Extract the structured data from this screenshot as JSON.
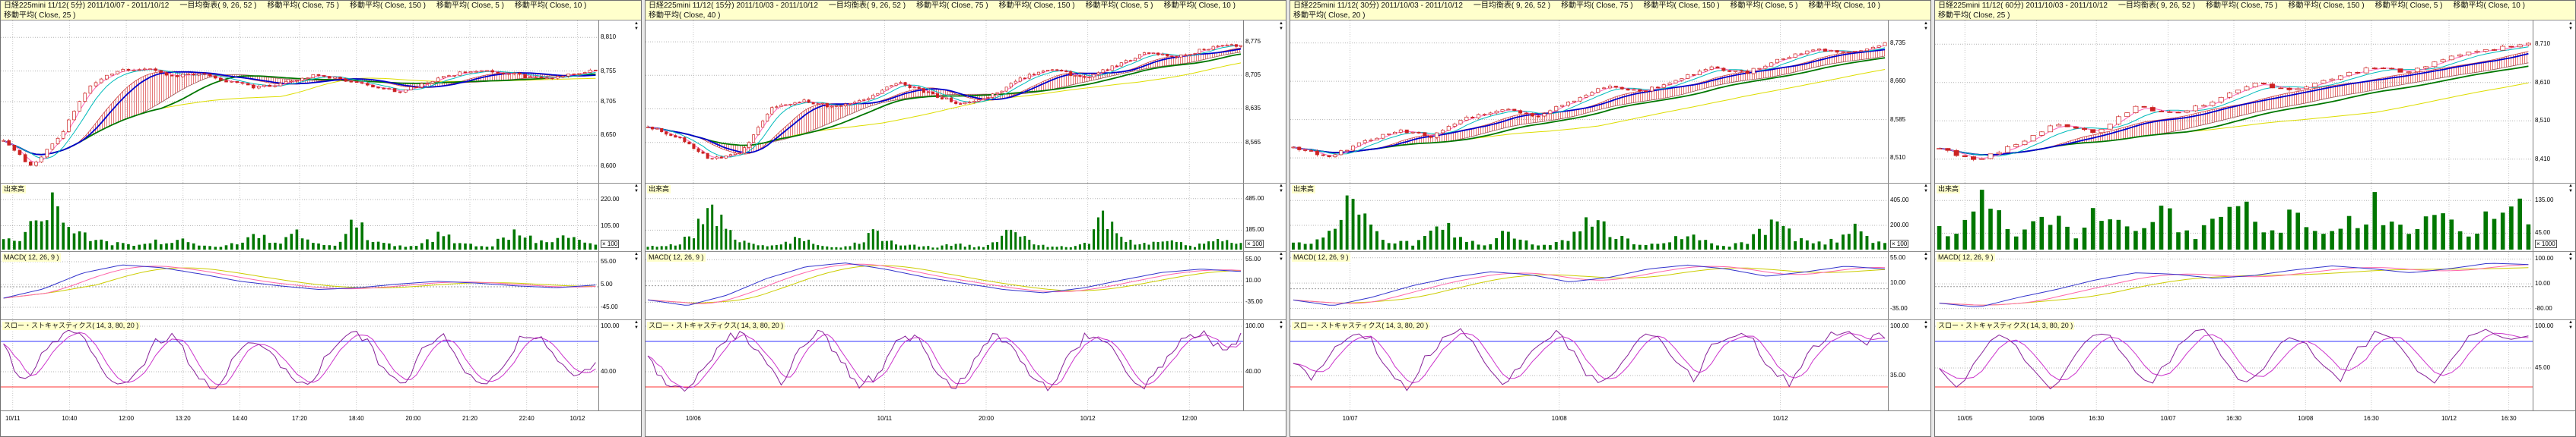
{
  "app": {
    "name": "マルチチャート",
    "accent_colors": {
      "header_bg": "#ffffcc",
      "grid": "#b4b4b4",
      "candle": "#cc2222",
      "candle_up_fill": "#ffffff",
      "volume": "#007700",
      "cloud": "#dd5555",
      "ma_fast": "#ff66bb",
      "ma_mid": "#00bbbb",
      "ma_slow": "#0000cc",
      "ma_slower": "#007700",
      "ma_slowest": "#dddd00",
      "macd_line": "#3333cc",
      "macd_signal": "#ff66aa",
      "macd_osc": "#cccc00",
      "stoch_k": "#882299",
      "stoch_d": "#cc33cc",
      "stoch_upper_line": "#3333ff",
      "stoch_lower_line": "#ff3333"
    }
  },
  "chart_data": [
    {
      "type": "candlestick",
      "title": "日経225mini 11/12( 5分)  2011/10/07 - 2011/10/12",
      "legend": [
        "一目均衡表( 9, 26, 52 )",
        "移動平均( Close, 75 )",
        "移動平均( Close, 150 )",
        "移動平均( Close, 5 )",
        "移動平均( Close, 10 )",
        "移動平均( Close, 25 )"
      ],
      "price": {
        "min": 8580,
        "max": 8830,
        "candles": 110,
        "ticks": [
          {
            "label": "8,810",
            "v": 8810
          },
          {
            "label": "8,755",
            "v": 8755
          },
          {
            "label": "8,705",
            "v": 8705
          },
          {
            "label": "8,650",
            "v": 8650
          },
          {
            "label": "8,600",
            "v": 8600
          }
        ],
        "close": [
          8640,
          8600,
          8648,
          8730,
          8755,
          8760,
          8745,
          8752,
          8738,
          8728,
          8736,
          8748,
          8742,
          8730,
          8722,
          8736,
          8750,
          8758,
          8750,
          8742,
          8748,
          8756
        ]
      },
      "volume": {
        "label": "出来高",
        "unit": "× 100",
        "max": 240,
        "ticks": [
          {
            "label": "220.00",
            "v": 220
          },
          {
            "label": "105.00",
            "v": 105
          }
        ],
        "values": [
          55,
          30,
          120,
          210,
          160,
          80,
          45,
          30,
          22,
          18,
          35,
          25,
          40,
          15,
          10,
          28,
          45,
          60,
          25,
          85,
          35,
          20,
          15,
          140,
          60,
          25,
          18,
          12,
          40,
          70,
          30,
          18,
          12,
          55,
          90,
          45,
          28,
          65,
          35,
          20
        ]
      },
      "macd": {
        "label": "MACD( 12, 26, 9 )",
        "min": -60,
        "max": 70,
        "ticks": [
          {
            "label": "55.00",
            "v": 55
          },
          {
            "label": "5.00",
            "v": 5
          },
          {
            "label": "-45.00",
            "v": -45
          }
        ],
        "keypoints": [
          -25,
          -5,
          30,
          48,
          42,
          28,
          12,
          2,
          -6,
          -2,
          6,
          12,
          8,
          2,
          -2,
          4
        ]
      },
      "stoch": {
        "label": "スロー・ストキャスティクス( 14, 3, 80, 20 )",
        "upper": 80,
        "lower": 20,
        "ticks": [
          {
            "label": "100.00",
            "v": 100
          },
          {
            "label": "40.00",
            "v": 40
          }
        ],
        "keypoints": [
          75,
          25,
          60,
          88,
          92,
          45,
          18,
          35,
          80,
          90,
          40,
          15,
          55,
          85,
          70,
          30,
          20,
          65,
          90,
          85,
          35,
          22,
          70,
          88,
          45,
          18,
          40,
          82,
          90,
          50,
          28,
          55
        ]
      },
      "times": [
        {
          "label": "10/11",
          "x": 0.02
        },
        {
          "label": "10:40",
          "x": 0.115
        },
        {
          "label": "12:00",
          "x": 0.21
        },
        {
          "label": "13:20",
          "x": 0.305
        },
        {
          "label": "14:40",
          "x": 0.4
        },
        {
          "label": "17:20",
          "x": 0.5
        },
        {
          "label": "18:40",
          "x": 0.595
        },
        {
          "label": "20:00",
          "x": 0.69
        },
        {
          "label": "21:20",
          "x": 0.785
        },
        {
          "label": "22:40",
          "x": 0.88
        },
        {
          "label": "10/12",
          "x": 0.965
        }
      ]
    },
    {
      "type": "candlestick",
      "title": "日経225mini 11/12( 15分)  2011/10/03 - 2011/10/12",
      "legend": [
        "一目均衡表( 9, 26, 52 )",
        "移動平均( Close, 75 )",
        "移動平均( Close, 150 )",
        "移動平均( Close, 5 )",
        "移動平均( Close, 10 )",
        "移動平均( Close, 40 )"
      ],
      "price": {
        "min": 8490,
        "max": 8810,
        "candles": 130,
        "ticks": [
          {
            "label": "8,775",
            "v": 8775
          },
          {
            "label": "8,705",
            "v": 8705
          },
          {
            "label": "8,635",
            "v": 8635
          },
          {
            "label": "8,565",
            "v": 8565
          }
        ],
        "close": [
          8598,
          8575,
          8528,
          8545,
          8640,
          8652,
          8638,
          8655,
          8690,
          8668,
          8645,
          8662,
          8700,
          8718,
          8698,
          8725,
          8752,
          8745,
          8762,
          8768
        ]
      },
      "volume": {
        "label": "出来高",
        "unit": "× 100",
        "max": 520,
        "ticks": [
          {
            "label": "485.00",
            "v": 485
          },
          {
            "label": "185.00",
            "v": 185
          }
        ],
        "values": [
          40,
          25,
          60,
          150,
          480,
          220,
          90,
          50,
          35,
          60,
          120,
          45,
          30,
          25,
          80,
          160,
          70,
          40,
          30,
          25,
          55,
          35,
          28,
          90,
          180,
          75,
          40,
          30,
          22,
          60,
          340,
          120,
          65,
          45,
          90,
          55,
          35,
          70,
          120,
          60
        ]
      },
      "macd": {
        "label": "MACD( 12, 26, 9 )",
        "min": -60,
        "max": 65,
        "ticks": [
          {
            "label": "55.00",
            "v": 55
          },
          {
            "label": "10.00",
            "v": 10
          },
          {
            "label": "-35.00",
            "v": -35
          }
        ],
        "keypoints": [
          -30,
          -42,
          -20,
          15,
          40,
          48,
          35,
          18,
          5,
          -8,
          -15,
          -5,
          12,
          28,
          35,
          30
        ]
      },
      "stoch": {
        "label": "スロー・ストキャスティクス( 14, 3, 80, 20 )",
        "upper": 80,
        "lower": 20,
        "ticks": [
          {
            "label": "100.00",
            "v": 100
          },
          {
            "label": "40.00",
            "v": 40
          }
        ],
        "keypoints": [
          60,
          20,
          15,
          45,
          85,
          90,
          55,
          25,
          70,
          92,
          60,
          22,
          35,
          80,
          88,
          40,
          15,
          50,
          86,
          78,
          30,
          18,
          62,
          90,
          82,
          38,
          20,
          55,
          88,
          92,
          70,
          85
        ]
      },
      "times": [
        {
          "label": "10/06",
          "x": 0.08
        },
        {
          "label": "10/11",
          "x": 0.4
        },
        {
          "label": "20:00",
          "x": 0.57
        },
        {
          "label": "10/12",
          "x": 0.74
        },
        {
          "label": "12:00",
          "x": 0.91
        }
      ]
    },
    {
      "type": "candlestick",
      "title": "日経225mini 11/12( 30分)  2011/10/03 - 2011/10/12",
      "legend": [
        "一目均衡表( 9, 26, 52 )",
        "移動平均( Close, 75 )",
        "移動平均( Close, 150 )",
        "移動平均( Close, 5 )",
        "移動平均( Close, 10 )",
        "移動平均( Close, 20 )"
      ],
      "price": {
        "min": 8470,
        "max": 8770,
        "candles": 100,
        "ticks": [
          {
            "label": "8,735",
            "v": 8735
          },
          {
            "label": "8,660",
            "v": 8660
          },
          {
            "label": "8,585",
            "v": 8585
          },
          {
            "label": "8,510",
            "v": 8510
          }
        ],
        "close": [
          8532,
          8512,
          8540,
          8565,
          8552,
          8588,
          8605,
          8592,
          8622,
          8652,
          8640,
          8662,
          8688,
          8676,
          8705,
          8722,
          8715,
          8735
        ]
      },
      "volume": {
        "label": "出来高",
        "unit": "× 100",
        "max": 450,
        "ticks": [
          {
            "label": "405.00",
            "v": 405
          },
          {
            "label": "200.00",
            "v": 200
          }
        ],
        "values": [
          80,
          45,
          120,
          260,
          400,
          180,
          90,
          60,
          45,
          110,
          220,
          95,
          55,
          40,
          140,
          70,
          45,
          35,
          90,
          180,
          310,
          130,
          70,
          50,
          40,
          85,
          160,
          75,
          45,
          35,
          70,
          150,
          240,
          110,
          60,
          45,
          95,
          170,
          85,
          55
        ]
      },
      "macd": {
        "label": "MACD( 12, 26, 9 )",
        "min": -45,
        "max": 60,
        "ticks": [
          {
            "label": "55.00",
            "v": 55
          },
          {
            "label": "10.00",
            "v": 10
          },
          {
            "label": "-35.00",
            "v": -35
          }
        ],
        "keypoints": [
          -20,
          -30,
          -15,
          5,
          20,
          30,
          25,
          12,
          20,
          35,
          42,
          35,
          22,
          30,
          40,
          35
        ]
      },
      "stoch": {
        "label": "スロー・ストキャスティクス( 14, 3, 80, 20 )",
        "upper": 80,
        "lower": 20,
        "ticks": [
          {
            "label": "100.00",
            "v": 100
          },
          {
            "label": "35.00",
            "v": 35
          }
        ],
        "keypoints": [
          55,
          25,
          70,
          90,
          85,
          40,
          20,
          60,
          88,
          92,
          55,
          25,
          45,
          85,
          90,
          50,
          20,
          40,
          82,
          90,
          60,
          30,
          75,
          92,
          85,
          45,
          25,
          65,
          90,
          95,
          80,
          88
        ]
      },
      "times": [
        {
          "label": "10/07",
          "x": 0.1
        },
        {
          "label": "10/08",
          "x": 0.45
        },
        {
          "label": "10/12",
          "x": 0.82
        }
      ]
    },
    {
      "type": "candlestick",
      "title": "日経225mini 11/12( 60分)  2011/10/03 - 2011/10/12",
      "legend": [
        "一目均衡表( 9, 26, 52 )",
        "移動平均( Close, 75 )",
        "移動平均( Close, 150 )",
        "移動平均( Close, 5 )",
        "移動平均( Close, 10 )",
        "移動平均( Close, 25 )"
      ],
      "price": {
        "min": 8360,
        "max": 8760,
        "candles": 70,
        "ticks": [
          {
            "label": "8,710",
            "v": 8710
          },
          {
            "label": "8,610",
            "v": 8610
          },
          {
            "label": "8,510",
            "v": 8510
          },
          {
            "label": "8,410",
            "v": 8410
          }
        ],
        "close": [
          8435,
          8408,
          8452,
          8502,
          8478,
          8548,
          8528,
          8562,
          8608,
          8588,
          8622,
          8648,
          8638,
          8678,
          8695,
          8712
        ]
      },
      "volume": {
        "label": "出来高",
        "unit": "× 1000",
        "max": 150,
        "ticks": [
          {
            "label": "135.00",
            "v": 135
          },
          {
            "label": "45.00",
            "v": 45
          }
        ],
        "values": [
          60,
          35,
          90,
          130,
          80,
          50,
          95,
          120,
          70,
          45,
          85,
          110,
          60,
          40,
          75,
          100,
          55,
          38,
          70,
          95,
          120,
          65,
          42,
          80,
          105,
          58,
          40,
          72,
          98,
          125,
          68,
          45,
          82,
          108,
          62,
          44,
          78,
          102,
          115,
          90
        ]
      },
      "macd": {
        "label": "MACD( 12, 26, 9 )",
        "min": -100,
        "max": 115,
        "ticks": [
          {
            "label": "100.00",
            "v": 100
          },
          {
            "label": "10.00",
            "v": 10
          },
          {
            "label": "-80.00",
            "v": -80
          }
        ],
        "keypoints": [
          -60,
          -75,
          -40,
          -10,
          25,
          50,
          45,
          30,
          40,
          60,
          75,
          65,
          50,
          65,
          85,
          80
        ]
      },
      "stoch": {
        "label": "スロー・ストキャスティクス( 14, 3, 80, 20 )",
        "upper": 80,
        "lower": 20,
        "ticks": [
          {
            "label": "100.00",
            "v": 100
          },
          {
            "label": "45.00",
            "v": 45
          }
        ],
        "keypoints": [
          50,
          20,
          60,
          88,
          80,
          35,
          18,
          55,
          85,
          90,
          48,
          22,
          50,
          86,
          92,
          55,
          25,
          45,
          80,
          88,
          58,
          28,
          68,
          90,
          84,
          42,
          20,
          60,
          88,
          94,
          78,
          90
        ]
      },
      "times": [
        {
          "label": "10/05",
          "x": 0.05
        },
        {
          "label": "10/06",
          "x": 0.17
        },
        {
          "label": "16:30",
          "x": 0.27
        },
        {
          "label": "10/07",
          "x": 0.39
        },
        {
          "label": "16:30",
          "x": 0.5
        },
        {
          "label": "10/08",
          "x": 0.62
        },
        {
          "label": "16:30",
          "x": 0.73
        },
        {
          "label": "10/12",
          "x": 0.86
        },
        {
          "label": "16:30",
          "x": 0.96
        }
      ]
    }
  ]
}
